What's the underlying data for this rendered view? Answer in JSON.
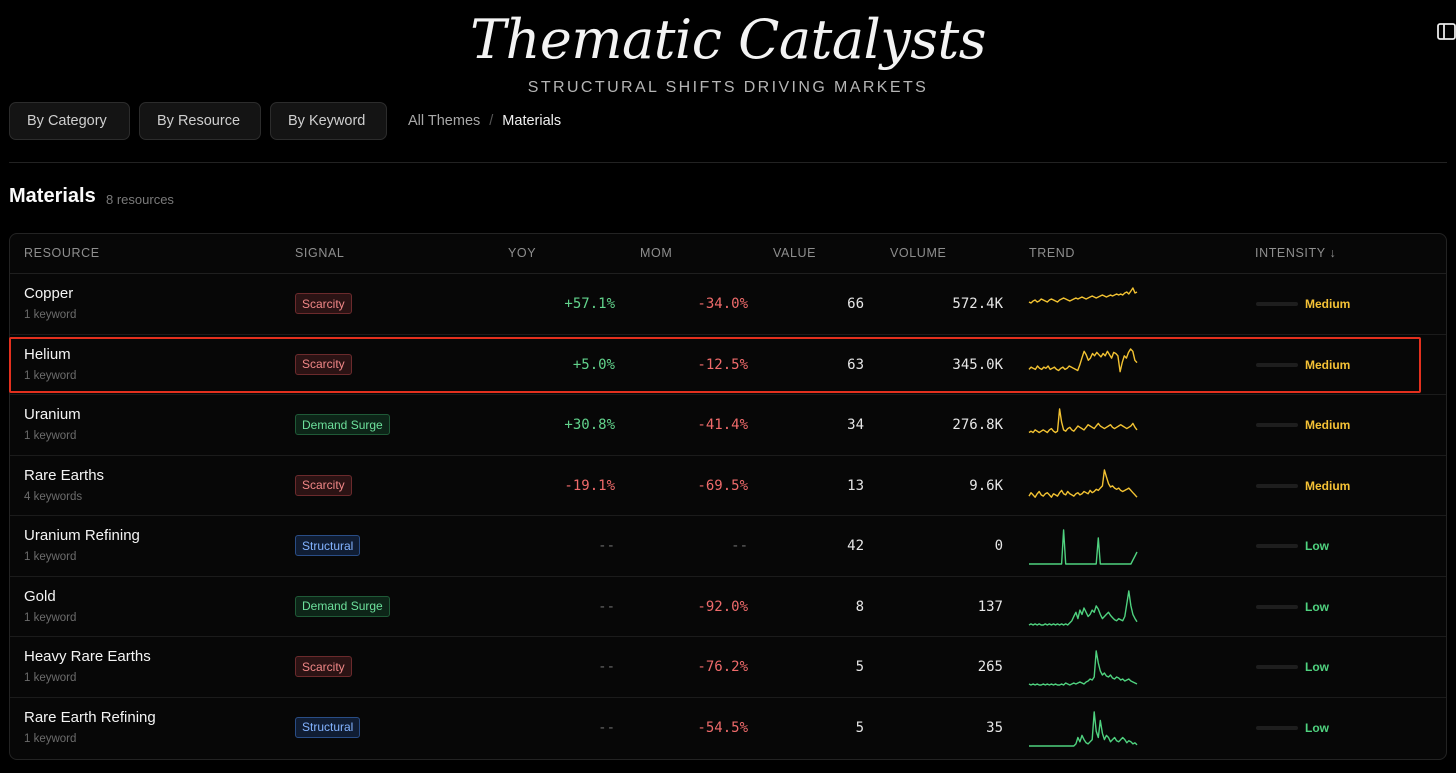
{
  "header": {
    "title": "Thematic Catalysts",
    "subtitle": "STRUCTURAL SHIFTS DRIVING MARKETS",
    "panel_icon": "sidebar-toggle-icon"
  },
  "filters": [
    {
      "label": "By Category"
    },
    {
      "label": "By Resource"
    },
    {
      "label": "By Keyword"
    }
  ],
  "breadcrumb": {
    "root": "All Themes",
    "separator": "/",
    "current": "Materials"
  },
  "section": {
    "title": "Materials",
    "count": "8 resources"
  },
  "table": {
    "columns": {
      "resource": "RESOURCE",
      "signal": "SIGNAL",
      "yoy": "YOY",
      "mom": "MOM",
      "value": "VALUE",
      "volume": "VOLUME",
      "trend": "TREND",
      "intensity": "INTENSITY ↓"
    },
    "rows": [
      {
        "name": "Copper",
        "keywords": "1 keyword",
        "signal": "Scarcity",
        "signal_type": "scarcity",
        "yoy": "+57.1%",
        "mom": "-34.0%",
        "value": "66",
        "volume": "572.4K",
        "intensity": "Medium",
        "intensity_level": 0.55,
        "trend_color": "#f2c232",
        "trend": [
          20,
          19,
          21,
          22,
          20,
          21,
          23,
          22,
          21,
          20,
          22,
          23,
          22,
          21,
          20,
          22,
          23,
          24,
          23,
          22,
          21,
          22,
          23,
          24,
          23,
          24,
          25,
          24,
          23,
          24,
          25,
          26,
          25,
          24,
          25,
          26,
          27,
          26,
          25,
          26,
          27,
          26,
          27,
          28,
          27,
          28,
          27,
          29,
          30,
          28,
          31,
          34,
          29,
          30
        ]
      },
      {
        "name": "Helium",
        "keywords": "1 keyword",
        "signal": "Scarcity",
        "signal_type": "scarcity",
        "yoy": "+5.0%",
        "mom": "-12.5%",
        "value": "63",
        "volume": "345.0K",
        "intensity": "Medium",
        "intensity_level": 0.45,
        "trend_color": "#f2c232",
        "trend": [
          12,
          14,
          13,
          12,
          15,
          13,
          12,
          14,
          13,
          15,
          12,
          13,
          14,
          12,
          11,
          13,
          14,
          12,
          13,
          15,
          14,
          13,
          12,
          11,
          16,
          22,
          28,
          25,
          20,
          22,
          26,
          24,
          27,
          25,
          23,
          26,
          24,
          28,
          25,
          22,
          27,
          26,
          24,
          10,
          18,
          24,
          22,
          27,
          30,
          28,
          20,
          18
        ]
      },
      {
        "name": "Uranium",
        "keywords": "1 keyword",
        "signal": "Demand Surge",
        "signal_type": "demand",
        "yoy": "+30.8%",
        "mom": "-41.4%",
        "value": "34",
        "volume": "276.8K",
        "intensity": "Medium",
        "intensity_level": 0.4,
        "trend_color": "#f2c232",
        "trend": [
          8,
          9,
          8,
          10,
          9,
          8,
          9,
          10,
          9,
          8,
          10,
          11,
          9,
          8,
          9,
          26,
          16,
          10,
          9,
          11,
          12,
          10,
          9,
          11,
          13,
          12,
          11,
          10,
          12,
          14,
          13,
          12,
          11,
          13,
          15,
          13,
          12,
          11,
          12,
          13,
          14,
          12,
          11,
          12,
          13,
          14,
          13,
          12,
          11,
          12,
          13,
          15,
          12,
          10
        ]
      },
      {
        "name": "Rare Earths",
        "keywords": "4 keywords",
        "signal": "Scarcity",
        "signal_type": "scarcity",
        "yoy": "-19.1%",
        "mom": "-69.5%",
        "value": "13",
        "volume": "9.6K",
        "intensity": "Medium",
        "intensity_level": 0.35,
        "trend_color": "#f2c232",
        "trend": [
          7,
          10,
          8,
          6,
          9,
          11,
          8,
          7,
          9,
          10,
          8,
          6,
          9,
          8,
          7,
          10,
          12,
          9,
          8,
          11,
          9,
          8,
          7,
          9,
          10,
          8,
          9,
          11,
          10,
          9,
          12,
          10,
          11,
          13,
          12,
          14,
          16,
          30,
          24,
          18,
          15,
          16,
          14,
          13,
          14,
          12,
          11,
          12,
          13,
          14,
          12,
          10,
          8,
          6
        ]
      },
      {
        "name": "Uranium Refining",
        "keywords": "1 keyword",
        "signal": "Structural",
        "signal_type": "structural",
        "yoy": "--",
        "mom": "--",
        "value": "42",
        "volume": "0",
        "intensity": "Low",
        "intensity_level": 0.25,
        "trend_color": "#4fd27f",
        "trend": [
          0,
          0,
          0,
          0,
          0,
          0,
          0,
          0,
          0,
          0,
          0,
          0,
          0,
          0,
          0,
          0,
          0,
          34,
          0,
          0,
          0,
          0,
          0,
          0,
          0,
          0,
          0,
          0,
          0,
          0,
          0,
          0,
          0,
          0,
          26,
          0,
          0,
          0,
          0,
          0,
          0,
          0,
          0,
          0,
          0,
          0,
          0,
          0,
          0,
          0,
          0,
          4,
          8,
          12
        ]
      },
      {
        "name": "Gold",
        "keywords": "1 keyword",
        "signal": "Demand Surge",
        "signal_type": "demand",
        "yoy": "--",
        "mom": "-92.0%",
        "value": "8",
        "volume": "137",
        "intensity": "Low",
        "intensity_level": 0.2,
        "trend_color": "#4fd27f",
        "trend": [
          0,
          1,
          0,
          1,
          0,
          1,
          0,
          0,
          1,
          0,
          1,
          0,
          1,
          0,
          1,
          0,
          1,
          0,
          1,
          0,
          2,
          4,
          8,
          12,
          6,
          14,
          10,
          16,
          12,
          8,
          10,
          14,
          12,
          18,
          15,
          10,
          6,
          8,
          10,
          12,
          9,
          7,
          5,
          4,
          6,
          5,
          4,
          8,
          20,
          32,
          18,
          10,
          6,
          3
        ]
      },
      {
        "name": "Heavy Rare Earths",
        "keywords": "1 keyword",
        "signal": "Scarcity",
        "signal_type": "scarcity",
        "yoy": "--",
        "mom": "-76.2%",
        "value": "5",
        "volume": "265",
        "intensity": "Low",
        "intensity_level": 0.18,
        "trend_color": "#4fd27f",
        "trend": [
          1,
          0,
          1,
          0,
          1,
          0,
          0,
          1,
          0,
          1,
          0,
          1,
          0,
          1,
          0,
          0,
          1,
          0,
          2,
          1,
          0,
          1,
          2,
          1,
          2,
          3,
          2,
          1,
          3,
          4,
          6,
          5,
          8,
          34,
          22,
          14,
          10,
          12,
          9,
          8,
          10,
          7,
          6,
          8,
          7,
          5,
          6,
          4,
          5,
          6,
          4,
          3,
          2,
          1
        ]
      },
      {
        "name": "Rare Earth Refining",
        "keywords": "1 keyword",
        "signal": "Structural",
        "signal_type": "structural",
        "yoy": "--",
        "mom": "-54.5%",
        "value": "5",
        "volume": "35",
        "intensity": "Low",
        "intensity_level": 0.18,
        "trend_color": "#4fd27f",
        "trend": [
          0,
          0,
          0,
          0,
          0,
          0,
          0,
          0,
          0,
          0,
          0,
          0,
          0,
          0,
          0,
          0,
          0,
          0,
          0,
          0,
          0,
          0,
          0,
          2,
          8,
          4,
          10,
          6,
          3,
          2,
          4,
          6,
          32,
          14,
          8,
          24,
          12,
          6,
          10,
          8,
          4,
          6,
          8,
          5,
          4,
          6,
          8,
          6,
          3,
          5,
          4,
          2,
          3,
          1
        ]
      }
    ]
  }
}
